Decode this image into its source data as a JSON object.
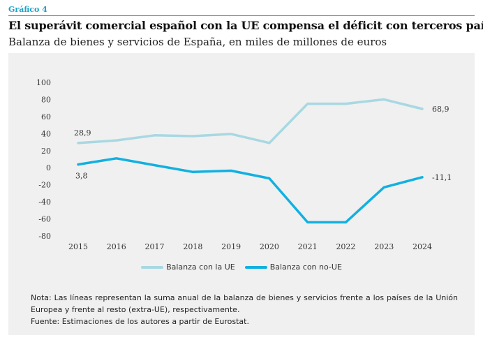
{
  "header": {
    "kicker": "Gráfico 4",
    "title": "El superávit comercial español con la UE compensa el déficit con terceros países",
    "subtitle": "Balanza de bienes y servicios de España, en miles de millones de euros"
  },
  "chart_data": {
    "type": "line",
    "title": "",
    "xlabel": "",
    "ylabel": "",
    "x": [
      2015,
      2016,
      2017,
      2018,
      2019,
      2020,
      2021,
      2022,
      2023,
      2024
    ],
    "y_ticks": [
      100,
      80,
      60,
      40,
      20,
      0,
      -20,
      -40,
      -60,
      -80
    ],
    "ylim": [
      -80,
      100
    ],
    "grid": false,
    "legend_position": "bottom",
    "series": [
      {
        "name": "Balanza con la UE",
        "color": "#a8d8e2",
        "values": [
          28.9,
          32,
          38,
          37,
          39.5,
          29,
          75,
          75,
          80,
          68.9
        ]
      },
      {
        "name": "Balanza con no-UE",
        "color": "#12b0e0",
        "values": [
          3.8,
          11,
          3,
          -5,
          -3.5,
          -12.5,
          -64,
          -64,
          -23,
          -11.1
        ]
      }
    ],
    "annotations": [
      "28,9",
      "3,8",
      "68,9",
      "-11,1"
    ]
  },
  "notes": {
    "nota": "Nota: Las líneas representan la suma anual de la balanza de bienes y servicios frente a los países de la Unión Europea y frente al resto (extra-UE), respectivamente.",
    "fuente": "Fuente: Estimaciones de los autores a partir de Eurostat."
  }
}
